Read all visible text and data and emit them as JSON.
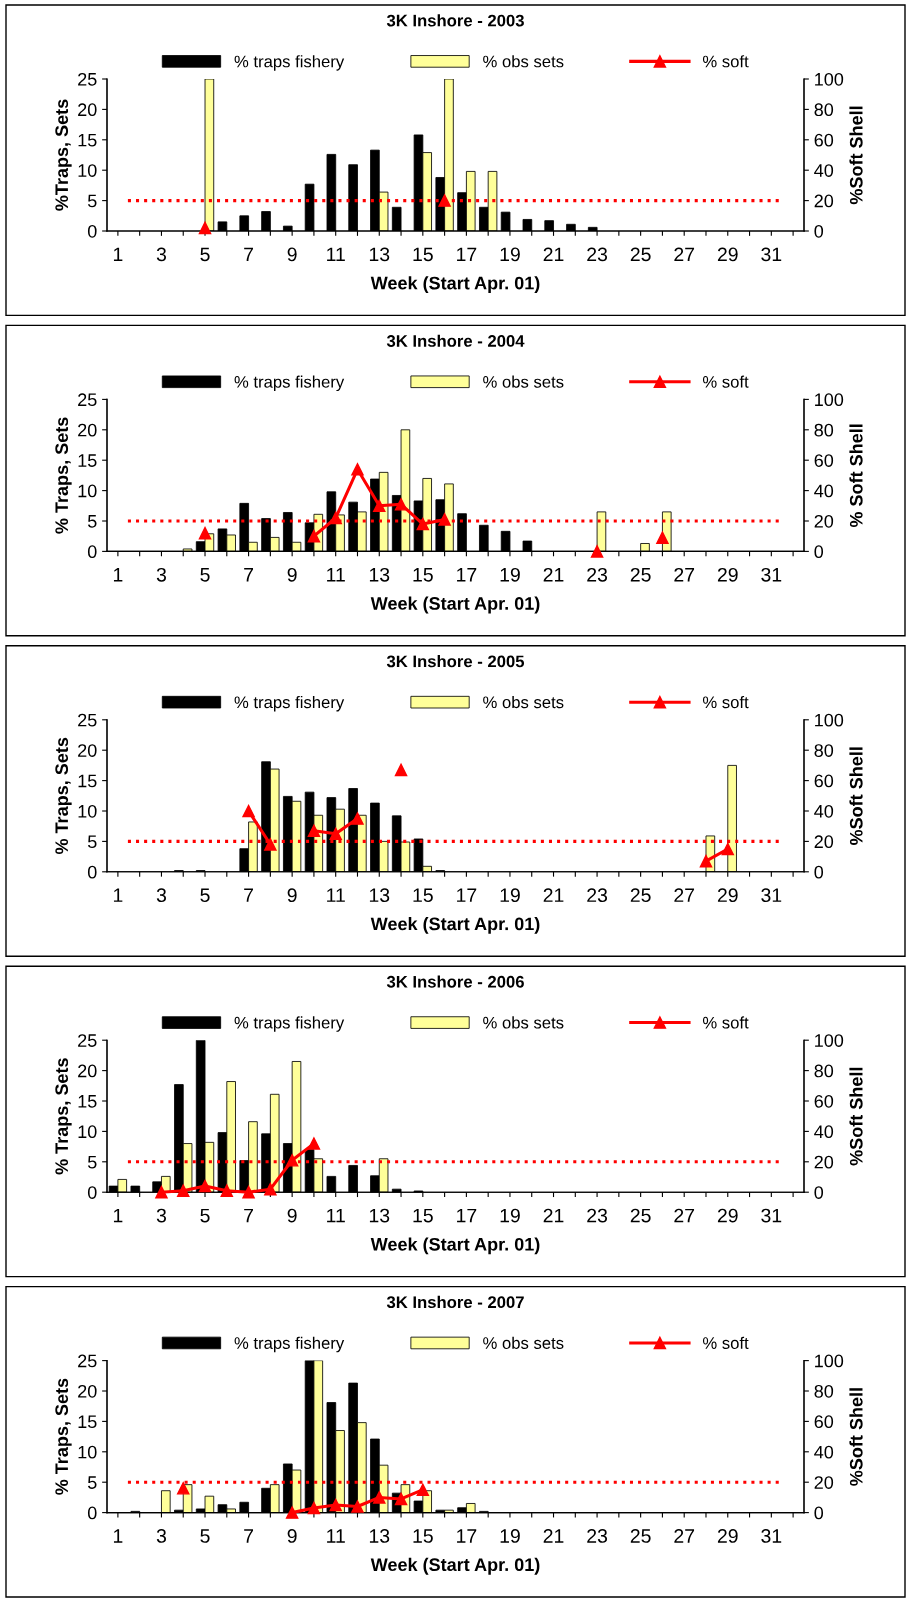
{
  "chart_data": [
    {
      "type": "bar",
      "title": "3K Inshore - 2003",
      "xlabel": "Week (Start Apr. 01)",
      "ylabel": "%Traps, Sets",
      "y2label": "%Soft Shell",
      "categories": [
        "1",
        null,
        "3",
        null,
        "5",
        null,
        "7",
        null,
        "9",
        null,
        "11",
        null,
        "13",
        null,
        "15",
        null,
        "17",
        null,
        "19",
        null,
        "21",
        null,
        "23",
        null,
        "25",
        null,
        "27",
        null,
        "29",
        null,
        "31",
        null
      ],
      "series": [
        {
          "name": "% traps fishery",
          "color": "#000000",
          "values": [
            null,
            null,
            null,
            null,
            null,
            1.5,
            2.5,
            3.2,
            0.8,
            7.7,
            12.6,
            10.9,
            13.3,
            3.9,
            15.8,
            8.8,
            6.3,
            3.9,
            3.1,
            1.9,
            1.7,
            1.1,
            0.6,
            null,
            null,
            null,
            null,
            null,
            null,
            null,
            null,
            null
          ]
        },
        {
          "name": "% obs sets",
          "color": "#ffff99",
          "values": [
            null,
            null,
            null,
            null,
            25,
            null,
            null,
            null,
            null,
            null,
            null,
            null,
            6.4,
            null,
            12.9,
            25,
            9.8,
            9.8,
            null,
            null,
            null,
            null,
            null,
            null,
            null,
            null,
            null,
            null,
            null,
            null,
            null,
            null
          ]
        },
        {
          "name": "% soft",
          "type": "line",
          "axis": "y2",
          "color": "#ff0000",
          "marker": "triangle",
          "values": [
            null,
            null,
            null,
            null,
            2,
            null,
            null,
            null,
            null,
            null,
            null,
            null,
            null,
            null,
            null,
            20,
            null,
            null,
            null,
            null,
            null,
            null,
            null,
            null,
            null,
            null,
            null,
            null,
            null,
            null,
            null,
            null
          ]
        }
      ],
      "ylim": [
        0,
        25
      ],
      "yticks": [
        0,
        5,
        10,
        15,
        20,
        25
      ],
      "y2lim": [
        0,
        100
      ],
      "y2ticks": [
        0,
        20,
        40,
        60,
        80,
        100
      ],
      "ref_lines": [
        {
          "axis": "y",
          "value": 5,
          "color": "#ff0000",
          "line_style": "dotted"
        }
      ],
      "legend": "top",
      "grid": false
    },
    {
      "type": "bar",
      "title": "3K Inshore - 2004",
      "xlabel": "Week (Start Apr. 01)",
      "ylabel": "% Traps, Sets",
      "y2label": "% Soft Shell",
      "categories": [
        "1",
        null,
        "3",
        null,
        "5",
        null,
        "7",
        null,
        "9",
        null,
        "11",
        null,
        "13",
        null,
        "15",
        null,
        "17",
        null,
        "19",
        null,
        "21",
        null,
        "23",
        null,
        "25",
        null,
        "27",
        null,
        "29",
        null,
        "31",
        null
      ],
      "series": [
        {
          "name": "% traps fishery",
          "color": "#000000",
          "values": [
            null,
            null,
            null,
            null,
            1.6,
            3.7,
            7.9,
            5.4,
            6.4,
            4.7,
            9.8,
            8.1,
            11.9,
            9.2,
            8.3,
            8.5,
            6.2,
            4.3,
            3.3,
            1.7,
            null,
            null,
            null,
            null,
            null,
            null,
            null,
            null,
            null,
            null,
            null,
            null
          ]
        },
        {
          "name": "% obs sets",
          "color": "#ffff99",
          "values": [
            null,
            null,
            null,
            0.4,
            2.9,
            2.7,
            1.5,
            2.3,
            1.5,
            6.1,
            6.0,
            6.5,
            13.0,
            20,
            12.0,
            11.1,
            null,
            null,
            null,
            null,
            null,
            null,
            6.5,
            null,
            1.3,
            6.5,
            null,
            null,
            null,
            null,
            null,
            null
          ]
        },
        {
          "name": "% soft",
          "type": "line",
          "axis": "y2",
          "color": "#ff0000",
          "marker": "triangle",
          "values": [
            null,
            null,
            null,
            null,
            12,
            null,
            null,
            null,
            null,
            10,
            22,
            54,
            30,
            31,
            18,
            21,
            null,
            null,
            null,
            null,
            null,
            null,
            0,
            null,
            null,
            9,
            null,
            null,
            null,
            null,
            null,
            null
          ]
        }
      ],
      "ylim": [
        0,
        25
      ],
      "yticks": [
        0,
        5,
        10,
        15,
        20,
        25
      ],
      "y2lim": [
        0,
        100
      ],
      "y2ticks": [
        0,
        20,
        40,
        60,
        80,
        100
      ],
      "ref_lines": [
        {
          "axis": "y",
          "value": 5,
          "color": "#ff0000",
          "line_style": "dotted"
        }
      ],
      "legend": "top",
      "grid": false
    },
    {
      "type": "bar",
      "title": "3K Inshore - 2005",
      "xlabel": "Week (Start Apr. 01)",
      "ylabel": "% Traps, Sets",
      "y2label": "%Soft Shell",
      "categories": [
        "1",
        null,
        "3",
        null,
        "5",
        null,
        "7",
        null,
        "9",
        null,
        "11",
        null,
        "13",
        null,
        "15",
        null,
        "17",
        null,
        "19",
        null,
        "21",
        null,
        "23",
        null,
        "25",
        null,
        "27",
        null,
        "29",
        null,
        "31",
        null
      ],
      "series": [
        {
          "name": "% traps fishery",
          "color": "#000000",
          "values": [
            null,
            null,
            null,
            0.2,
            0.2,
            null,
            3.8,
            18.1,
            12.4,
            13.1,
            12.2,
            13.7,
            11.3,
            9.2,
            5.4,
            0.2,
            null,
            null,
            null,
            null,
            null,
            null,
            null,
            null,
            null,
            null,
            null,
            null,
            null,
            null,
            null,
            null
          ]
        },
        {
          "name": "% obs sets",
          "color": "#ffff99",
          "values": [
            null,
            null,
            null,
            null,
            null,
            null,
            8.2,
            16.9,
            11.6,
            9.3,
            10.3,
            9.3,
            5.0,
            4.9,
            0.9,
            null,
            null,
            null,
            null,
            null,
            null,
            null,
            null,
            null,
            null,
            null,
            null,
            5.9,
            17.5,
            null,
            null,
            null
          ]
        },
        {
          "name": "% soft",
          "type": "line",
          "axis": "y2",
          "color": "#ff0000",
          "marker": "triangle",
          "values": [
            null,
            null,
            null,
            null,
            null,
            null,
            40,
            18,
            null,
            27,
            25,
            35,
            null,
            67,
            null,
            null,
            null,
            null,
            null,
            null,
            null,
            null,
            null,
            null,
            null,
            null,
            null,
            7,
            15,
            null,
            null,
            null
          ]
        }
      ],
      "ylim": [
        0,
        25
      ],
      "yticks": [
        0,
        5,
        10,
        15,
        20,
        25
      ],
      "y2lim": [
        0,
        100
      ],
      "y2ticks": [
        0,
        20,
        40,
        60,
        80,
        100
      ],
      "ref_lines": [
        {
          "axis": "y",
          "value": 5,
          "color": "#ff0000",
          "line_style": "dotted"
        }
      ],
      "legend": "top",
      "grid": false
    },
    {
      "type": "bar",
      "title": "3K Inshore - 2006",
      "xlabel": "Week (Start Apr. 01)",
      "ylabel": "% Traps, Sets",
      "y2label": "%Soft Shell",
      "categories": [
        "1",
        null,
        "3",
        null,
        "5",
        null,
        "7",
        null,
        "9",
        null,
        "11",
        null,
        "13",
        null,
        "15",
        null,
        "17",
        null,
        "19",
        null,
        "21",
        null,
        "23",
        null,
        "25",
        null,
        "27",
        null,
        "29",
        null,
        "31",
        null
      ],
      "series": [
        {
          "name": "% traps fishery",
          "color": "#000000",
          "values": [
            1.0,
            1.0,
            1.7,
            17.7,
            25,
            9.8,
            5.2,
            9.6,
            8.0,
            7.0,
            2.6,
            4.4,
            2.7,
            0.5,
            0.2,
            null,
            null,
            null,
            null,
            null,
            null,
            null,
            null,
            null,
            null,
            null,
            null,
            null,
            null,
            null,
            null,
            null
          ]
        },
        {
          "name": "% obs sets",
          "color": "#ffff99",
          "values": [
            2.1,
            null,
            2.6,
            8.0,
            8.2,
            18.2,
            11.6,
            16.1,
            21.5,
            5.5,
            null,
            null,
            5.5,
            null,
            null,
            null,
            null,
            null,
            null,
            null,
            null,
            null,
            null,
            null,
            null,
            null,
            null,
            null,
            null,
            null,
            null,
            null
          ]
        },
        {
          "name": "% soft",
          "type": "line",
          "axis": "y2",
          "color": "#ff0000",
          "marker": "triangle",
          "values": [
            null,
            null,
            0,
            1,
            4,
            1,
            0,
            2,
            21,
            32,
            null,
            null,
            null,
            null,
            null,
            null,
            null,
            null,
            null,
            null,
            null,
            null,
            null,
            null,
            null,
            null,
            null,
            null,
            null,
            null,
            null,
            null
          ]
        }
      ],
      "ylim": [
        0,
        25
      ],
      "yticks": [
        0,
        5,
        10,
        15,
        20,
        25
      ],
      "y2lim": [
        0,
        100
      ],
      "y2ticks": [
        0,
        20,
        40,
        60,
        80,
        100
      ],
      "ref_lines": [
        {
          "axis": "y",
          "value": 5,
          "color": "#ff0000",
          "line_style": "dotted"
        }
      ],
      "legend": "top",
      "grid": false
    },
    {
      "type": "bar",
      "title": "3K Inshore - 2007",
      "xlabel": "Week (Start Apr. 01)",
      "ylabel": "% Traps, Sets",
      "y2label": "%Soft Shell",
      "categories": [
        "1",
        null,
        "3",
        null,
        "5",
        null,
        "7",
        null,
        "9",
        null,
        "11",
        null,
        "13",
        null,
        "15",
        null,
        "17",
        null,
        "19",
        null,
        "21",
        null,
        "23",
        null,
        "25",
        null,
        "27",
        null,
        "29",
        null,
        "31",
        null
      ],
      "series": [
        {
          "name": "% traps fishery",
          "color": "#000000",
          "values": [
            null,
            0.2,
            null,
            0.4,
            0.6,
            1.3,
            1.7,
            4.0,
            8.0,
            25,
            18.1,
            21.3,
            12.1,
            3.2,
            1.9,
            0.4,
            0.8,
            0.2,
            null,
            null,
            null,
            null,
            null,
            null,
            null,
            null,
            null,
            null,
            null,
            null,
            null,
            null
          ]
        },
        {
          "name": "% obs sets",
          "color": "#ffff99",
          "values": [
            null,
            null,
            3.6,
            4.6,
            2.7,
            0.6,
            null,
            4.6,
            7.0,
            25,
            13.5,
            14.8,
            7.8,
            4.6,
            3.6,
            0.4,
            1.5,
            null,
            null,
            null,
            null,
            null,
            null,
            null,
            null,
            null,
            null,
            null,
            null,
            null,
            null,
            null
          ]
        },
        {
          "name": "% soft",
          "type": "line",
          "axis": "y2",
          "color": "#ff0000",
          "marker": "triangle",
          "values": [
            null,
            null,
            null,
            16,
            null,
            null,
            null,
            null,
            0,
            3,
            5,
            4,
            10,
            9,
            15,
            null,
            null,
            null,
            null,
            null,
            null,
            null,
            null,
            null,
            null,
            null,
            null,
            null,
            null,
            null,
            null,
            null
          ]
        }
      ],
      "ylim": [
        0,
        25
      ],
      "yticks": [
        0,
        5,
        10,
        15,
        20,
        25
      ],
      "y2lim": [
        0,
        100
      ],
      "y2ticks": [
        0,
        20,
        40,
        60,
        80,
        100
      ],
      "ref_lines": [
        {
          "axis": "y",
          "value": 5,
          "color": "#ff0000",
          "line_style": "dotted"
        }
      ],
      "legend": "top",
      "grid": false
    }
  ]
}
